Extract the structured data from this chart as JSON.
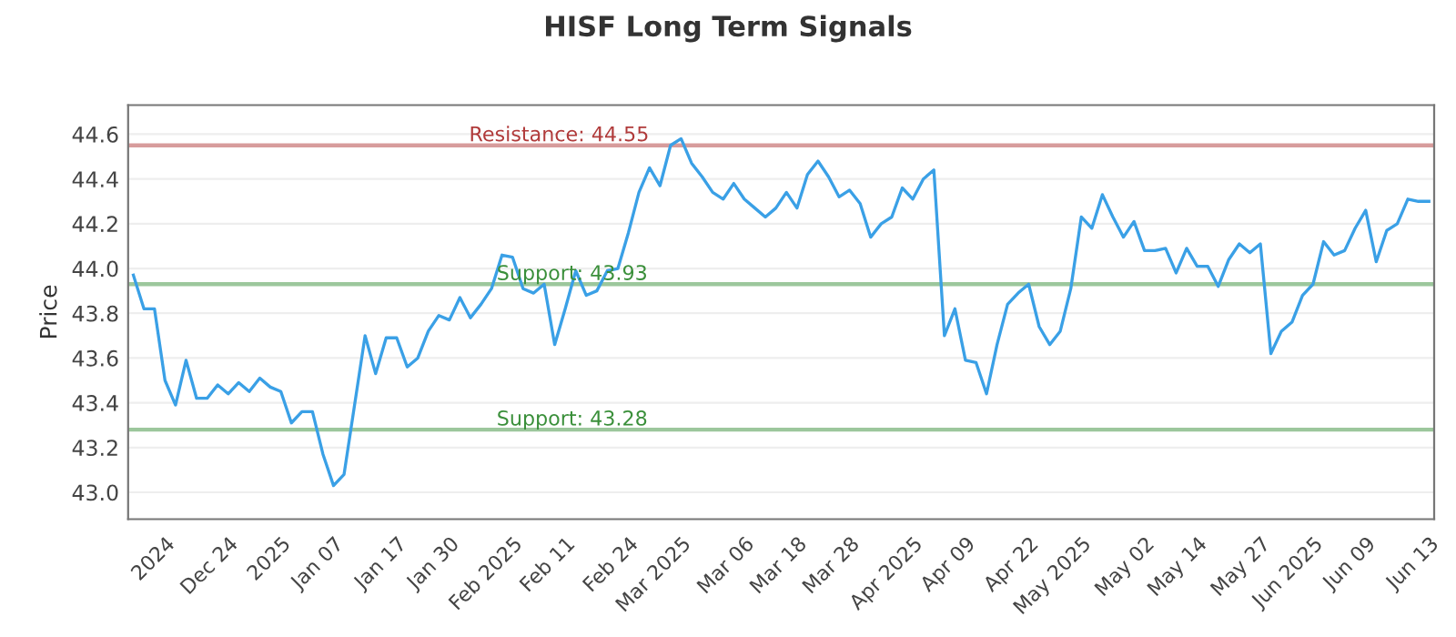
{
  "chart_data": {
    "type": "line",
    "title": "HISF Long Term Signals",
    "ylabel": "Price",
    "categories": [
      null,
      null,
      null,
      "2024",
      null,
      null,
      null,
      null,
      null,
      "Dec 24",
      null,
      null,
      null,
      null,
      "2025",
      null,
      null,
      null,
      null,
      "Jan 07",
      null,
      null,
      null,
      null,
      null,
      "Jan 17",
      null,
      null,
      null,
      null,
      "Jan 30",
      null,
      null,
      null,
      null,
      null,
      "Feb 2025",
      null,
      null,
      null,
      null,
      "Feb 11",
      null,
      null,
      null,
      null,
      null,
      "Feb 24",
      null,
      null,
      null,
      null,
      "Mar 2025",
      null,
      null,
      null,
      null,
      null,
      "Mar 06",
      null,
      null,
      null,
      null,
      "Mar 18",
      null,
      null,
      null,
      null,
      "Mar 28",
      null,
      null,
      null,
      null,
      null,
      "Apr 2025",
      null,
      null,
      null,
      null,
      "Apr 09",
      null,
      null,
      null,
      null,
      null,
      "Apr 22",
      null,
      null,
      null,
      null,
      "May 2025",
      null,
      null,
      null,
      null,
      null,
      "May 02",
      null,
      null,
      null,
      null,
      "May 14",
      null,
      null,
      null,
      null,
      null,
      "May 27",
      null,
      null,
      null,
      null,
      "Jun 2025",
      null,
      null,
      null,
      null,
      "Jun 09",
      null,
      null,
      null,
      null,
      null,
      "Jun 13"
    ],
    "series": [
      {
        "color": "#3aa0e6",
        "values": [
          43.97,
          43.82,
          43.82,
          43.5,
          43.39,
          43.59,
          43.42,
          43.42,
          43.48,
          43.44,
          43.49,
          43.45,
          43.51,
          43.47,
          43.45,
          43.31,
          43.36,
          43.36,
          43.17,
          43.03,
          43.08,
          43.39,
          43.7,
          43.53,
          43.69,
          43.69,
          43.56,
          43.6,
          43.72,
          43.79,
          43.77,
          43.87,
          43.78,
          43.84,
          43.91,
          44.06,
          44.05,
          43.91,
          43.89,
          43.93,
          43.66,
          43.82,
          43.99,
          43.88,
          43.9,
          43.99,
          44.0,
          44.16,
          44.34,
          44.45,
          44.37,
          44.55,
          44.58,
          44.47,
          44.41,
          44.34,
          44.31,
          44.38,
          44.31,
          44.27,
          44.23,
          44.27,
          44.34,
          44.27,
          44.42,
          44.48,
          44.41,
          44.32,
          44.35,
          44.29,
          44.14,
          44.2,
          44.23,
          44.36,
          44.31,
          44.4,
          44.44,
          43.7,
          43.82,
          43.59,
          43.58,
          43.44,
          43.66,
          43.84,
          43.89,
          43.93,
          43.74,
          43.66,
          43.72,
          43.91,
          44.23,
          44.18,
          44.33,
          44.23,
          44.14,
          44.21,
          44.08,
          44.08,
          44.09,
          43.98,
          44.09,
          44.01,
          44.01,
          43.92,
          44.04,
          44.11,
          44.07,
          44.11,
          43.62,
          43.72,
          43.76,
          43.88,
          43.93,
          44.12,
          44.06,
          44.08,
          44.18,
          44.26,
          44.03,
          44.17,
          44.2,
          44.31,
          44.3,
          44.3
        ]
      }
    ],
    "ylim": [
      42.88,
      44.73
    ],
    "yticks": [
      {
        "value": 43.0,
        "label": "43.0"
      },
      {
        "value": 43.2,
        "label": "43.2"
      },
      {
        "value": 43.4,
        "label": "43.4"
      },
      {
        "value": 43.6,
        "label": "43.6"
      },
      {
        "value": 43.8,
        "label": "43.8"
      },
      {
        "value": 44.0,
        "label": "44.0"
      },
      {
        "value": 44.2,
        "label": "44.2"
      },
      {
        "value": 44.4,
        "label": "44.4"
      },
      {
        "value": 44.6,
        "label": "44.6"
      }
    ],
    "grid": "y",
    "marker": "none",
    "line_style": "solid",
    "ref_lines": [
      {
        "axis": "y",
        "value": 44.55,
        "label": "Resistance: 44.55",
        "color": "#b03a3a"
      },
      {
        "axis": "y",
        "value": 43.93,
        "label": "Support: 43.93",
        "color": "#3a8f3a"
      },
      {
        "axis": "y",
        "value": 43.28,
        "label": "Support: 43.28",
        "color": "#3a8f3a"
      }
    ]
  }
}
